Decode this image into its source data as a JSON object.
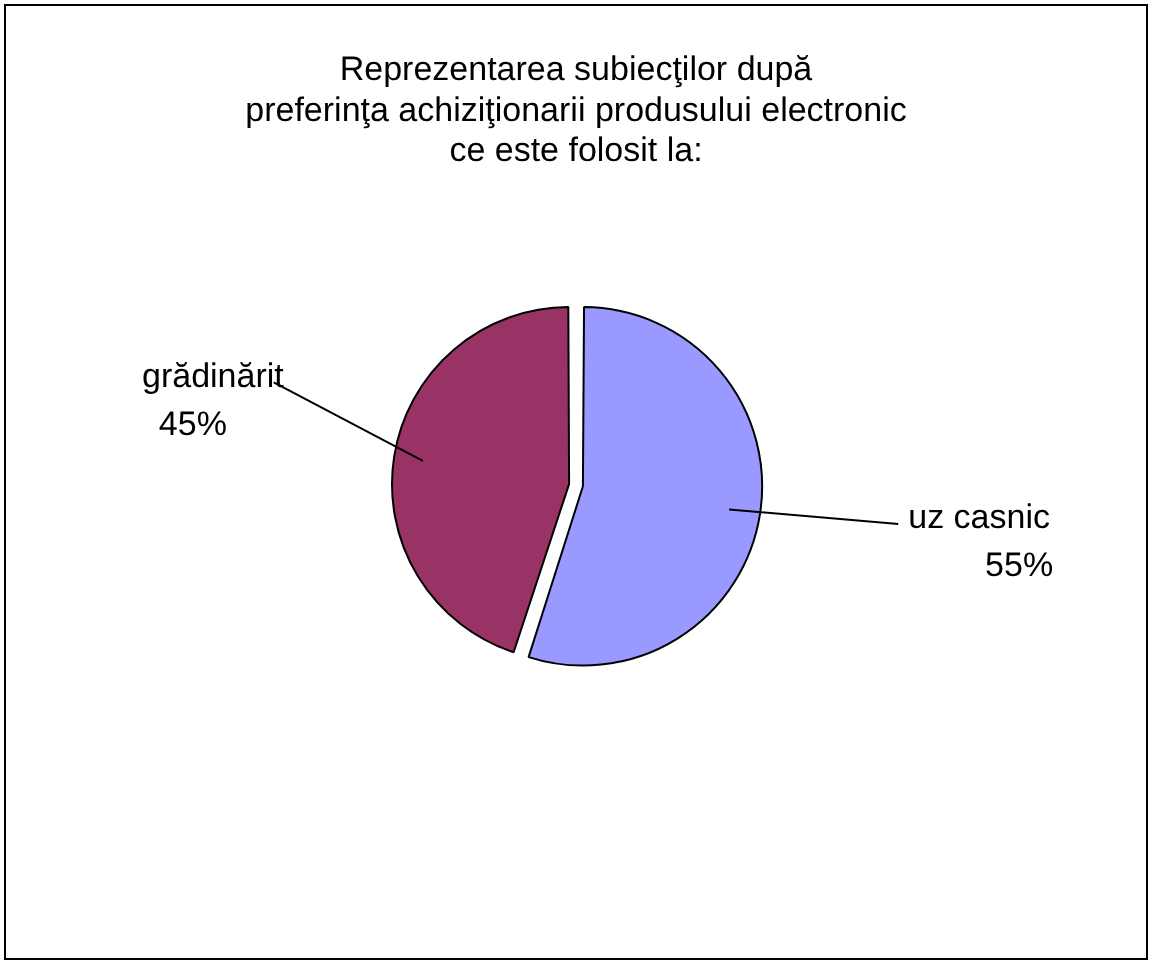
{
  "chart_data": {
    "type": "pie",
    "title": "Reprezentarea subiecţilor după\npreferinţa achiziţionarii produsului electronic\nce este folosit la:",
    "categories": [
      "uz casnic",
      "grădinărit"
    ],
    "values": [
      55,
      45
    ],
    "colors": [
      "#9999ff",
      "#993366"
    ],
    "value_labels": [
      "55%",
      "45%"
    ],
    "legend": false
  }
}
